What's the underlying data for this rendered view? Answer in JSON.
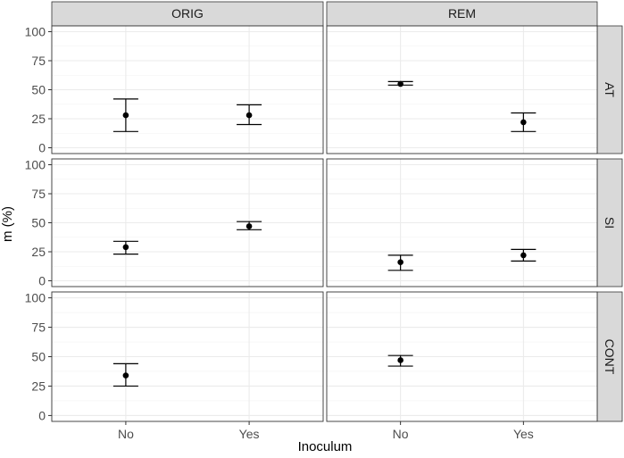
{
  "chart_data": {
    "type": "scatter",
    "subtype": "faceted point-range (mean with error bars)",
    "xlabel": "Inoculum",
    "ylabel": "m (%)",
    "categories": [
      "No",
      "Yes"
    ],
    "ylim": [
      0,
      100
    ],
    "yticks": [
      0,
      25,
      50,
      75,
      100
    ],
    "grid": true,
    "columns": [
      "ORIG",
      "REM"
    ],
    "rows": [
      "AT",
      "SI",
      "CONT"
    ],
    "panels": [
      {
        "row": "AT",
        "col": "ORIG",
        "points": [
          {
            "x": "No",
            "y": 28,
            "lower": 14,
            "upper": 42
          },
          {
            "x": "Yes",
            "y": 28,
            "lower": 20,
            "upper": 37
          }
        ]
      },
      {
        "row": "AT",
        "col": "REM",
        "points": [
          {
            "x": "No",
            "y": 55,
            "lower": 54,
            "upper": 57
          },
          {
            "x": "Yes",
            "y": 22,
            "lower": 14,
            "upper": 30
          }
        ]
      },
      {
        "row": "SI",
        "col": "ORIG",
        "points": [
          {
            "x": "No",
            "y": 29,
            "lower": 23,
            "upper": 34
          },
          {
            "x": "Yes",
            "y": 47,
            "lower": 44,
            "upper": 51
          }
        ]
      },
      {
        "row": "SI",
        "col": "REM",
        "points": [
          {
            "x": "No",
            "y": 16,
            "lower": 9,
            "upper": 22
          },
          {
            "x": "Yes",
            "y": 22,
            "lower": 17,
            "upper": 27
          }
        ]
      },
      {
        "row": "CONT",
        "col": "ORIG",
        "points": [
          {
            "x": "No",
            "y": 34,
            "lower": 25,
            "upper": 44
          }
        ]
      },
      {
        "row": "CONT",
        "col": "REM",
        "points": [
          {
            "x": "No",
            "y": 47,
            "lower": 42,
            "upper": 51
          }
        ]
      }
    ]
  }
}
